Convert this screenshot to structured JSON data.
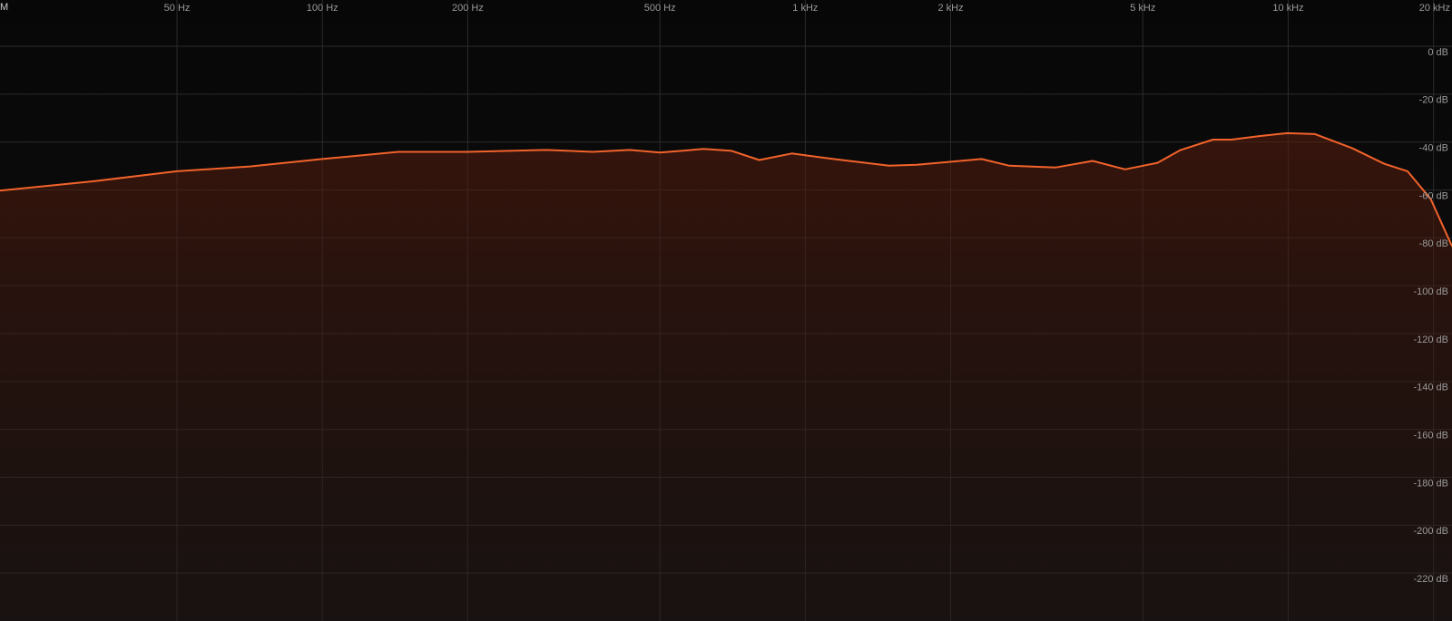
{
  "chart_data": {
    "type": "area",
    "corner_label": "M",
    "color": "#f2632b",
    "xscale": "log",
    "grid": true,
    "xlim": [
      21.5,
      21840
    ],
    "ylim": [
      -240,
      19.3
    ],
    "xticks": [
      {
        "value": 50,
        "label": "50 Hz"
      },
      {
        "value": 100,
        "label": "100 Hz"
      },
      {
        "value": 200,
        "label": "200 Hz"
      },
      {
        "value": 500,
        "label": "500 Hz"
      },
      {
        "value": 1000,
        "label": "1 kHz"
      },
      {
        "value": 2000,
        "label": "2 kHz"
      },
      {
        "value": 5000,
        "label": "5 kHz"
      },
      {
        "value": 10000,
        "label": "10 kHz"
      },
      {
        "value": 20000,
        "label": "20 kHz"
      }
    ],
    "yticks": [
      {
        "value": 0,
        "label": "0 dB"
      },
      {
        "value": -20,
        "label": "-20 dB"
      },
      {
        "value": -40,
        "label": "-40 dB"
      },
      {
        "value": -60,
        "label": "-60 dB"
      },
      {
        "value": -80,
        "label": "-80 dB"
      },
      {
        "value": -100,
        "label": "-100 dB"
      },
      {
        "value": -120,
        "label": "-120 dB"
      },
      {
        "value": -140,
        "label": "-140 dB"
      },
      {
        "value": -160,
        "label": "-160 dB"
      },
      {
        "value": -180,
        "label": "-180 dB"
      },
      {
        "value": -200,
        "label": "-200 dB"
      },
      {
        "value": -220,
        "label": "-220 dB"
      }
    ],
    "x": [
      21.5,
      33.5,
      50,
      70.8,
      100,
      143.6,
      200,
      291,
      363,
      433,
      500,
      616,
      704,
      803,
      938,
      1144,
      1491,
      1702,
      2318,
      2646,
      3302,
      3937,
      4595,
      5363,
      5988,
      6990,
      7636,
      8719,
      9955,
      11363,
      13553,
      15820,
      17667,
      19730,
      21840
    ],
    "values": [
      -60.3,
      -56.4,
      -52.2,
      -50.2,
      -47.1,
      -44.1,
      -44.1,
      -43.3,
      -44.1,
      -43.3,
      -44.4,
      -42.9,
      -43.7,
      -47.5,
      -44.8,
      -47.1,
      -49.9,
      -49.5,
      -47.1,
      -49.9,
      -50.6,
      -47.9,
      -51.4,
      -48.7,
      -43.3,
      -39,
      -39,
      -37.5,
      -36.3,
      -36.7,
      -42.5,
      -49.1,
      -52.2,
      -63.8,
      -83.5
    ]
  }
}
